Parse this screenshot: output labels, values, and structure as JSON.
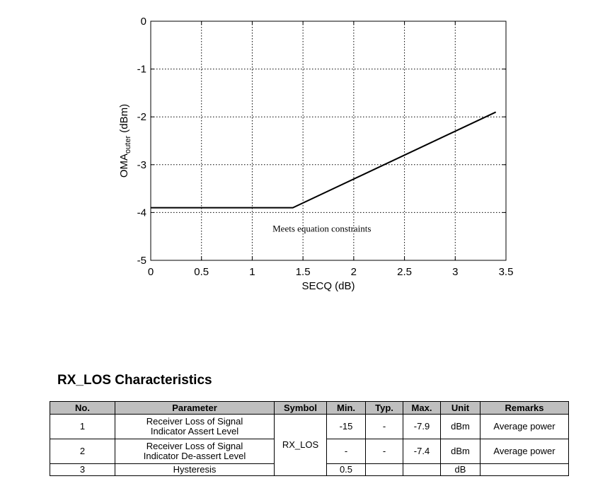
{
  "chart_data": {
    "type": "line",
    "xlabel": "SECQ (dB)",
    "ylabel_main": "OMA",
    "ylabel_sub": "outer",
    "ylabel_unit": " (dBm)",
    "xlim": [
      0,
      3.5
    ],
    "ylim": [
      -5,
      0
    ],
    "grid": true,
    "x_ticks": [
      "0",
      "0.5",
      "1",
      "1.5",
      "2",
      "2.5",
      "3",
      "3.5"
    ],
    "y_ticks": [
      "0",
      "-1",
      "-2",
      "-3",
      "-4",
      "-5"
    ],
    "series": [
      {
        "x": [
          0,
          1.4,
          3.4
        ],
        "y": [
          -3.9,
          -3.9,
          -1.9
        ]
      }
    ],
    "annotations": [
      {
        "text": "Meets equation constraints",
        "x": 1.2,
        "y": -4.4
      }
    ]
  },
  "section": {
    "title": "RX_LOS Characteristics"
  },
  "table": {
    "headers": [
      "No.",
      "Parameter",
      "Symbol",
      "Min.",
      "Typ.",
      "Max.",
      "Unit",
      "Remarks"
    ],
    "symbol": "RX_LOS",
    "rows": [
      {
        "no": "1",
        "param_line1": "Receiver Loss of Signal",
        "param_line2": "Indicator Assert Level",
        "min": "-15",
        "typ": "-",
        "max": "-7.9",
        "unit": "dBm",
        "remarks": "Average power"
      },
      {
        "no": "2",
        "param_line1": "Receiver Loss of Signal",
        "param_line2": "Indicator De-assert Level",
        "min": "-",
        "typ": "-",
        "max": "-7.4",
        "unit": "dBm",
        "remarks": "Average power"
      },
      {
        "no": "3",
        "param_line1": "Hysteresis",
        "param_line2": "",
        "min": "0.5",
        "typ": "",
        "max": "",
        "unit": "dB",
        "remarks": ""
      }
    ]
  }
}
